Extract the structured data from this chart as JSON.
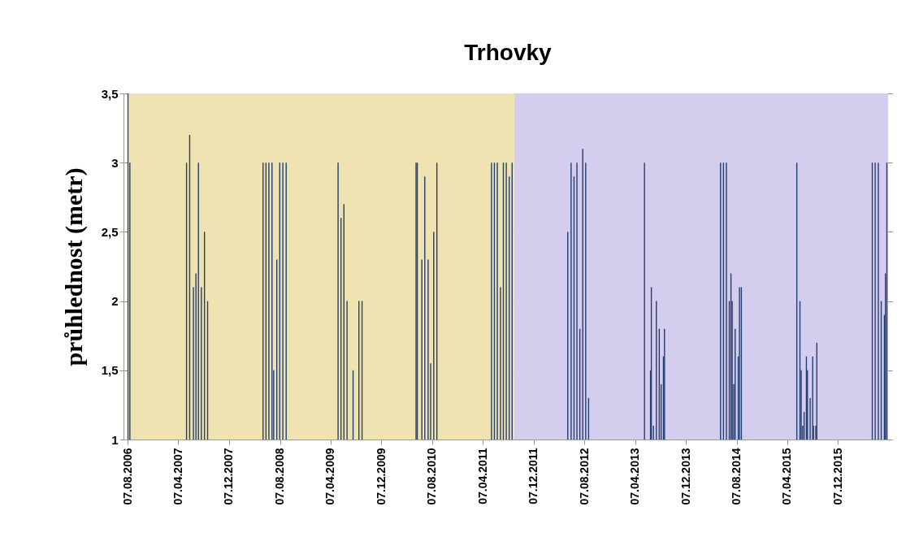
{
  "chart_data": {
    "type": "bar",
    "title": "Trhovky",
    "ylabel": "průhlednost (metr)",
    "x": [
      "2006-08-09",
      "2006-08-18",
      "2007-05-17",
      "2007-06-01",
      "2007-06-19",
      "2007-07-01",
      "2007-07-13",
      "2007-07-27",
      "2007-08-11",
      "2007-08-26",
      "2008-05-18",
      "2008-06-01",
      "2008-06-15",
      "2008-06-30",
      "2008-07-08",
      "2008-07-23",
      "2008-08-06",
      "2008-08-21",
      "2008-09-06",
      "2009-05-13",
      "2009-05-27",
      "2009-06-10",
      "2009-06-25",
      "2009-07-24",
      "2009-08-21",
      "2009-09-05",
      "2010-05-22",
      "2010-05-28",
      "2010-06-19",
      "2010-07-03",
      "2010-07-19",
      "2010-07-31",
      "2010-08-15",
      "2010-08-30",
      "2011-05-19",
      "2011-06-02",
      "2011-06-16",
      "2011-07-01",
      "2011-07-15",
      "2011-07-29",
      "2011-08-12",
      "2011-08-26",
      "2012-05-19",
      "2012-06-04",
      "2012-06-18",
      "2012-07-02",
      "2012-07-16",
      "2012-07-30",
      "2012-08-13",
      "2012-08-27",
      "2013-05-22",
      "2013-06-20",
      "2013-06-24",
      "2013-07-04",
      "2013-07-18",
      "2013-08-01",
      "2013-08-10",
      "2013-08-21",
      "2013-08-26",
      "2014-05-22",
      "2014-06-05",
      "2014-06-19",
      "2014-07-03",
      "2014-07-11",
      "2014-07-17",
      "2014-07-24",
      "2014-07-31",
      "2014-08-15",
      "2014-08-21",
      "2014-08-30",
      "2015-05-23",
      "2015-06-07",
      "2015-06-13",
      "2015-06-20",
      "2015-06-27",
      "2015-07-08",
      "2015-07-13",
      "2015-07-26",
      "2015-08-07",
      "2015-08-11",
      "2015-08-22",
      "2015-08-27",
      "2016-05-19",
      "2016-06-02",
      "2016-06-17",
      "2016-07-01",
      "2016-07-16",
      "2016-07-21",
      "2016-07-28"
    ],
    "series": [
      {
        "color": "#243f73",
        "values": [
          3.5,
          3.0,
          3.0,
          3.2,
          2.1,
          2.2,
          3.0,
          2.1,
          2.5,
          2.0,
          3.0,
          3.0,
          3.0,
          3.0,
          1.5,
          2.3,
          3.0,
          3.0,
          3.0,
          3.0,
          2.6,
          2.7,
          2.0,
          1.5,
          2.0,
          2.0,
          3.0,
          3.0,
          2.3,
          2.9,
          2.3,
          1.55,
          2.5,
          3.0,
          3.0,
          3.0,
          3.0,
          2.1,
          3.0,
          3.0,
          2.9,
          3.0,
          2.5,
          3.0,
          2.9,
          3.0,
          1.8,
          3.1,
          3.0,
          1.3,
          3.0,
          1.5,
          2.1,
          1.1,
          2.0,
          1.8,
          1.4,
          1.6,
          1.8,
          3.0,
          3.0,
          3.0,
          2.0,
          2.2,
          2.0,
          1.4,
          1.8,
          1.6,
          2.1,
          2.1,
          3.0,
          2.0,
          1.5,
          1.1,
          1.2,
          1.6,
          1.5,
          1.3,
          1.6,
          1.1,
          1.1,
          1.7,
          3.0,
          3.0,
          3.0,
          2.0,
          1.9,
          2.2,
          3.0
        ]
      }
    ],
    "xlim": [
      "2006-08-07",
      "2016-08-03"
    ],
    "xticks": [
      {
        "value": "2006-08-07",
        "label": "07.08.2006"
      },
      {
        "value": "2007-04-07",
        "label": "07.04.2007"
      },
      {
        "value": "2007-12-07",
        "label": "07.12.2007"
      },
      {
        "value": "2008-08-07",
        "label": "07.08.2008"
      },
      {
        "value": "2009-04-07",
        "label": "07.04.2009"
      },
      {
        "value": "2009-12-07",
        "label": "07.12.2009"
      },
      {
        "value": "2010-08-07",
        "label": "07.08.2010"
      },
      {
        "value": "2011-04-07",
        "label": "07.04.2011"
      },
      {
        "value": "2011-12-07",
        "label": "07.12.2011"
      },
      {
        "value": "2012-08-07",
        "label": "07.08.2012"
      },
      {
        "value": "2013-04-07",
        "label": "07.04.2013"
      },
      {
        "value": "2013-12-07",
        "label": "07.12.2013"
      },
      {
        "value": "2014-08-07",
        "label": "07.08.2014"
      },
      {
        "value": "2015-04-07",
        "label": "07.04.2015"
      },
      {
        "value": "2015-12-07",
        "label": "07.12.2015"
      }
    ],
    "ylim": [
      1,
      3.5
    ],
    "yticks": [
      1,
      {
        "value": 1.5,
        "label": "1,5"
      },
      2,
      {
        "value": 2.5,
        "label": "2,5"
      },
      3,
      {
        "value": 3.5,
        "label": "3,5"
      }
    ],
    "bands": [
      {
        "axis": "x",
        "from": "2006-08-07",
        "to": "2011-09-05",
        "color": "#efe3b1"
      },
      {
        "axis": "x",
        "from": "2011-09-05",
        "to": "2016-08-03",
        "color": "#d4cdee"
      }
    ],
    "grid": "y"
  }
}
